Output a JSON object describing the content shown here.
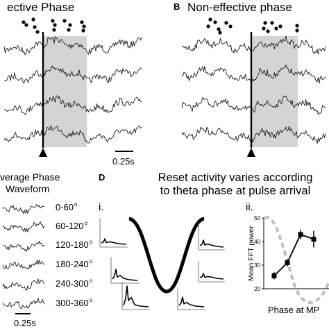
{
  "panel_a": {
    "title": "ective Phase",
    "scale_label": "0.25s"
  },
  "panel_b": {
    "letter": "B",
    "title": "Non-effective phase"
  },
  "panel_c": {
    "title_line1": "verage Phase",
    "title_line2": "Waveform",
    "scale_label": "0.25s",
    "bins": [
      "0-60",
      "60-120",
      "120-180",
      "180-240",
      "240-300",
      "300-360"
    ],
    "degree_symbol": "o"
  },
  "panel_d": {
    "letter": "D",
    "title_line1": "Reset activity varies according",
    "title_line2": "to theta phase at pulse arrival",
    "sub_i": "i.",
    "sub_ii": "ii."
  },
  "chart_data": {
    "type": "line",
    "title": "",
    "xlabel": "Phase at MP",
    "ylabel": "Mean FFT power",
    "ylim": [
      20,
      50
    ],
    "yticks": [
      20,
      30,
      40,
      50
    ],
    "grid": false,
    "series": [
      {
        "x": [
          1,
          2,
          3,
          4
        ],
        "values": [
          25.5,
          31,
          43,
          41
        ],
        "error": [
          1.5,
          1.5,
          2,
          3.5
        ]
      }
    ],
    "colors": {
      "data_line": "#111111",
      "theta_wave": "#bdbdbd",
      "shade": "#d4d4d4"
    }
  }
}
